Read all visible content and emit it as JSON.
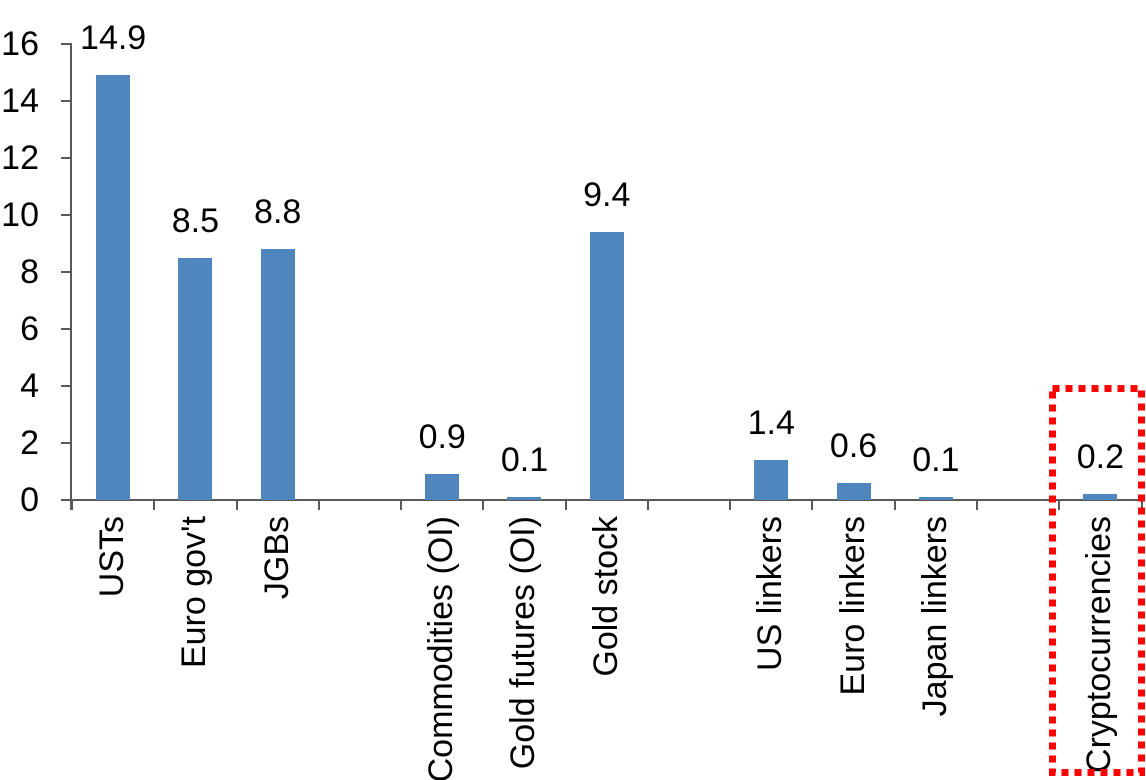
{
  "chart_data": {
    "type": "bar",
    "title": "",
    "xlabel": "",
    "ylabel": "",
    "categories": [
      "USTs",
      "Euro gov't",
      "JGBs",
      "",
      "Commodities (OI)",
      "Gold futures (OI)",
      "Gold stock",
      "",
      "US linkers",
      "Euro linkers",
      "Japan linkers",
      "",
      "Cryptocurrencies"
    ],
    "values": [
      14.9,
      8.5,
      8.8,
      null,
      0.9,
      0.1,
      9.4,
      null,
      1.4,
      0.6,
      0.1,
      null,
      0.2
    ],
    "data_labels": [
      "14.9",
      "8.5",
      "8.8",
      "",
      "0.9",
      "0.1",
      "9.4",
      "",
      "1.4",
      "0.6",
      "0.1",
      "",
      "0.2"
    ],
    "ylim": [
      0,
      16
    ],
    "ytick_interval": 2,
    "ytick_labels": [
      "0",
      "2",
      "4",
      "6",
      "8",
      "10",
      "12",
      "14",
      "16"
    ],
    "grid": false,
    "legend": "none",
    "bar_color": "#4e86bd",
    "axis_color": "#595959",
    "text_color": "#000000",
    "highlight": {
      "category": "Cryptocurrencies",
      "style": "dotted-box",
      "color": "#ff0000"
    }
  }
}
